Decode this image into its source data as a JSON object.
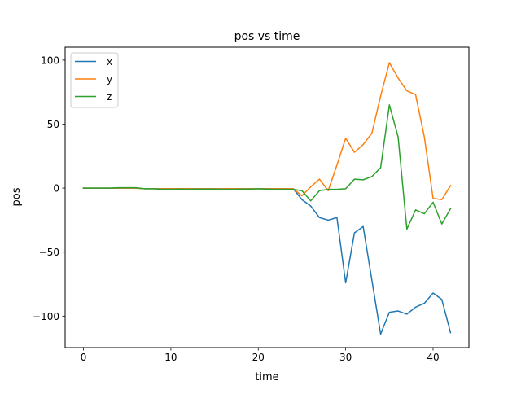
{
  "chart_data": {
    "type": "line",
    "title": "pos vs time",
    "xlabel": "time",
    "ylabel": "pos",
    "xlim": [
      -2.1,
      44.1
    ],
    "ylim": [
      -124.6,
      110.1
    ],
    "x_ticks": [
      0,
      10,
      20,
      30,
      40
    ],
    "x_tick_labels": [
      "0",
      "10",
      "20",
      "30",
      "40"
    ],
    "y_ticks": [
      100,
      50,
      0,
      -50,
      -100
    ],
    "y_tick_labels": [
      "100",
      "50",
      "0",
      "−50",
      "−100"
    ],
    "grid": false,
    "legend": "top-left",
    "x": [
      0,
      1,
      2,
      3,
      4,
      5,
      6,
      7,
      8,
      9,
      10,
      11,
      12,
      13,
      14,
      15,
      16,
      17,
      18,
      19,
      20,
      21,
      22,
      23,
      24,
      25,
      26,
      27,
      28,
      29,
      30,
      31,
      32,
      33,
      34,
      35,
      36,
      37,
      38,
      39,
      40,
      41,
      42
    ],
    "series": [
      {
        "name": "x",
        "color": "#1f77b4",
        "values": [
          0,
          0,
          0,
          0,
          0,
          0,
          0,
          -0.5,
          -0.5,
          -0.5,
          -0.5,
          -0.5,
          -0.5,
          -0.5,
          -0.5,
          -0.5,
          -0.5,
          -0.5,
          -0.5,
          -0.5,
          -0.5,
          -0.5,
          -0.5,
          -0.5,
          -0.5,
          -9,
          -14,
          -23,
          -25,
          -23,
          -74,
          -35,
          -30,
          -72,
          -114,
          -97,
          -96,
          -98.5,
          -93,
          -90,
          -82,
          -87,
          -113
        ]
      },
      {
        "name": "y",
        "color": "#ff7f0e",
        "values": [
          0,
          0,
          0,
          0,
          0,
          0,
          0,
          -0.5,
          -0.5,
          -0.5,
          -0.5,
          -0.5,
          -0.5,
          -0.5,
          -0.5,
          -0.5,
          -0.5,
          -0.5,
          -0.5,
          -0.5,
          -0.5,
          -0.5,
          -0.5,
          -0.5,
          -0.5,
          -6,
          1,
          7,
          -2,
          18,
          39,
          28,
          34,
          43,
          72,
          98,
          86,
          76,
          73,
          40,
          -8,
          -9,
          2
        ]
      },
      {
        "name": "z",
        "color": "#2ca02c",
        "values": [
          0,
          0,
          0,
          0,
          0.3,
          0.3,
          0.3,
          -0.5,
          -0.5,
          -1,
          -1,
          -0.8,
          -1,
          -0.8,
          -0.8,
          -0.8,
          -1,
          -1,
          -0.8,
          -0.8,
          -0.5,
          -0.8,
          -1,
          -1,
          -1,
          -2,
          -10,
          -2,
          -1,
          -1,
          -0.5,
          7,
          6.5,
          9,
          16,
          65,
          40,
          -32,
          -17,
          -20,
          -11,
          -28,
          -16
        ]
      }
    ]
  }
}
